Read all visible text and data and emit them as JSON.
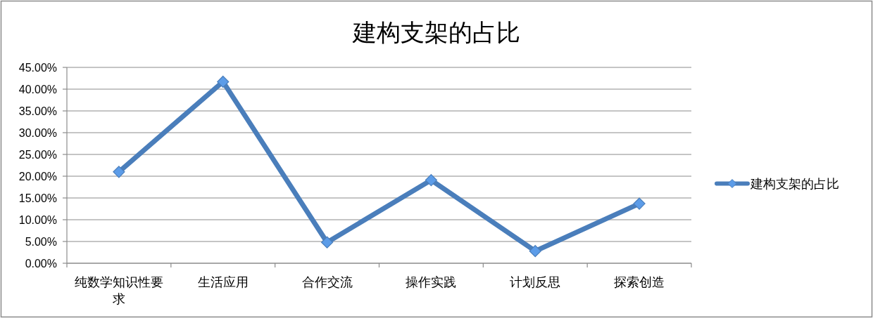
{
  "chart_data": {
    "type": "line",
    "title": "建构支架的占比",
    "categories": [
      "纯数学知识性要求",
      "生活应用",
      "合作交流",
      "操作实践",
      "计划反思",
      "探索创造"
    ],
    "series": [
      {
        "name": "建构支架的占比",
        "color": "#4a7ebb",
        "values": [
          21.0,
          41.7,
          4.8,
          19.1,
          2.8,
          13.7
        ]
      }
    ],
    "ylim": [
      0,
      45
    ],
    "yticks": [
      {
        "value": 0,
        "label": "0.00%"
      },
      {
        "value": 5,
        "label": "5.00%"
      },
      {
        "value": 10,
        "label": "10.00%"
      },
      {
        "value": 15,
        "label": "15.00%"
      },
      {
        "value": 20,
        "label": "20.00%"
      },
      {
        "value": 25,
        "label": "25.00%"
      },
      {
        "value": 30,
        "label": "30.00%"
      },
      {
        "value": 35,
        "label": "35.00%"
      },
      {
        "value": 40,
        "label": "40.00%"
      },
      {
        "value": 45,
        "label": "45.00%"
      }
    ],
    "grid": "y",
    "legend": "right",
    "marker": "diamond",
    "line_style": "solid"
  }
}
